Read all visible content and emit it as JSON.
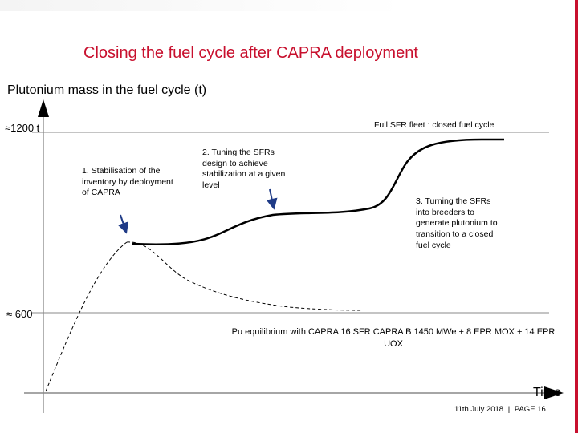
{
  "slide": {
    "title": "Closing the fuel cycle after CAPRA deployment",
    "y_axis_title": "Plutonium mass in the fuel cycle (t)",
    "y_label_high": "≈1200 t",
    "y_label_low": "≈ 600",
    "x_axis_title": "Time",
    "annotations": {
      "full_fleet": "Full SFR fleet : closed fuel cycle",
      "step1": "1. Stabilisation of the inventory by deployment of CAPRA",
      "step2": "2. Tuning the SFRs design to achieve stabilization at a given level",
      "step3": "3. Turning the SFRs into breeders to generate plutonium to transition to a closed fuel cycle",
      "equilibrium": "Pu equilibrium with CAPRA 16 SFR CAPRA B 1450 MWe + 8 EPR MOX + 14 EPR UOX"
    },
    "footer": {
      "date": "11th July 2018",
      "page": "PAGE 16"
    }
  },
  "colors": {
    "accent": "#c8102e",
    "axis": "#888888",
    "curve": "#000000",
    "arrow": "#1f3b87"
  }
}
